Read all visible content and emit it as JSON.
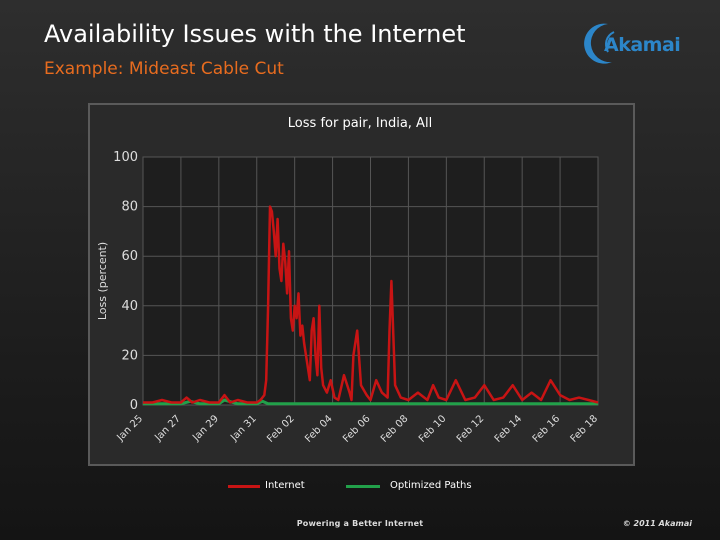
{
  "slide": {
    "title": "Availability Issues with the Internet",
    "subtitle": "Example: Mideast Cable Cut",
    "logo_text": "Akamai",
    "footer_tagline": "Powering a Better Internet",
    "footer_copyright": "© 2011 Akamai",
    "colors": {
      "title": "#ffffff",
      "subtitle": "#e86c1f",
      "logo": "#2c86c9",
      "internet_series": "#c81414",
      "optimized_series": "#22a04a",
      "panel_bg": "#2a2a2a",
      "plot_bg": "#1e1e1e",
      "grid": "#555555"
    }
  },
  "chart_data": {
    "type": "line",
    "title": "Loss for pair, India, All",
    "xlabel": "",
    "ylabel": "Loss (percent)",
    "ylim": [
      0,
      100
    ],
    "yticks": [
      0,
      20,
      40,
      60,
      80,
      100
    ],
    "x_tick_labels": [
      "Jan 25",
      "Jan 27",
      "Jan 29",
      "Jan 31",
      "Feb 02",
      "Feb 04",
      "Feb 06",
      "Feb 08",
      "Feb 10",
      "Feb 12",
      "Feb 14",
      "Feb 16",
      "Feb 18"
    ],
    "x_tick_days": [
      0,
      2,
      4,
      6,
      8,
      10,
      12,
      14,
      16,
      18,
      20,
      22,
      24
    ],
    "xlim_days": [
      0,
      24
    ],
    "grid": true,
    "legend_position": "bottom",
    "series": [
      {
        "name": "Internet",
        "x": [
          0,
          0.5,
          1,
          1.5,
          2,
          2.3,
          2.6,
          3,
          3.5,
          4,
          4.3,
          4.6,
          5,
          5.5,
          6,
          6.2,
          6.4,
          6.5,
          6.6,
          6.7,
          6.8,
          6.9,
          7.0,
          7.1,
          7.2,
          7.3,
          7.4,
          7.5,
          7.6,
          7.7,
          7.8,
          7.9,
          8.0,
          8.1,
          8.2,
          8.3,
          8.4,
          8.5,
          8.6,
          8.7,
          8.8,
          8.9,
          9.0,
          9.1,
          9.2,
          9.3,
          9.4,
          9.5,
          9.7,
          9.9,
          10.1,
          10.3,
          10.6,
          10.9,
          11.0,
          11.1,
          11.3,
          11.5,
          11.8,
          12.0,
          12.3,
          12.6,
          12.9,
          13.0,
          13.1,
          13.3,
          13.6,
          14.0,
          14.5,
          15.0,
          15.3,
          15.6,
          16.0,
          16.5,
          17.0,
          17.5,
          18.0,
          18.5,
          19.0,
          19.5,
          20.0,
          20.5,
          21.0,
          21.5,
          22.0,
          22.5,
          23.0,
          23.5,
          24.0
        ],
        "values": [
          1,
          1,
          2,
          1,
          1,
          3,
          1,
          2,
          1,
          1,
          4,
          1,
          2,
          1,
          1,
          2,
          4,
          10,
          40,
          80,
          78,
          70,
          60,
          75,
          55,
          50,
          65,
          58,
          45,
          62,
          35,
          30,
          40,
          35,
          45,
          28,
          32,
          25,
          20,
          15,
          10,
          30,
          35,
          20,
          12,
          40,
          15,
          8,
          5,
          10,
          3,
          2,
          12,
          5,
          2,
          20,
          30,
          8,
          4,
          2,
          10,
          5,
          3,
          30,
          50,
          8,
          3,
          2,
          5,
          2,
          8,
          3,
          2,
          10,
          2,
          3,
          8,
          2,
          3,
          8,
          2,
          5,
          2,
          10,
          4,
          2,
          3,
          2,
          1
        ]
      },
      {
        "name": "Optimized Paths",
        "x": [
          0,
          1,
          2,
          2.5,
          3,
          4,
          4.3,
          5,
          6,
          6.3,
          6.6,
          7,
          8,
          9,
          10,
          12,
          14,
          16,
          18,
          20,
          22,
          24
        ],
        "values": [
          0.5,
          0.5,
          0.5,
          1.5,
          0.5,
          0.5,
          2,
          0.5,
          0.5,
          1.5,
          0.5,
          0.5,
          0.5,
          0.5,
          0.5,
          0.5,
          0.5,
          0.5,
          0.5,
          0.5,
          0.5,
          0.5
        ]
      }
    ]
  }
}
